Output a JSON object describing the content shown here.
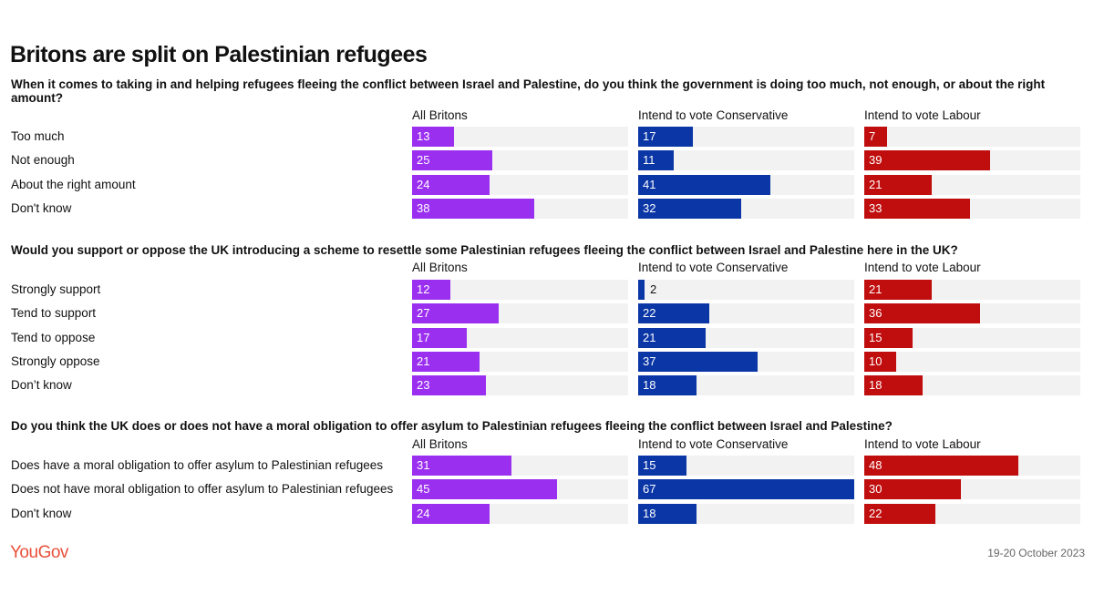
{
  "title": "Britons are split on Palestinian refugees",
  "logo": "YouGov",
  "date": "19-20 October 2023",
  "colors": {
    "All Britons": "#9b2ff0",
    "Intend to vote Conservative": "#0a36a6",
    "Intend to vote Labour": "#c00d0d"
  },
  "chart_data": [
    {
      "type": "bar",
      "title": "When it comes to taking in and helping refugees fleeing the conflict between Israel and Palestine, do you think the government is doing too much, not enough, or about the right amount?",
      "categories": [
        "Too much",
        "Not enough",
        "About the right amount",
        "Don't know"
      ],
      "series": [
        {
          "name": "All Britons",
          "values": [
            13,
            25,
            24,
            38
          ]
        },
        {
          "name": "Intend to vote Conservative",
          "values": [
            17,
            11,
            41,
            32
          ]
        },
        {
          "name": "Intend to vote Labour",
          "values": [
            7,
            39,
            21,
            33
          ]
        }
      ]
    },
    {
      "type": "bar",
      "title": "Would you support or oppose the UK introducing a scheme to resettle some Palestinian refugees fleeing the conflict between Israel and Palestine here in the UK?",
      "categories": [
        "Strongly support",
        "Tend to support",
        "Tend to oppose",
        "Strongly oppose",
        "Don’t know"
      ],
      "series": [
        {
          "name": "All Britons",
          "values": [
            12,
            27,
            17,
            21,
            23
          ]
        },
        {
          "name": "Intend to vote Conservative",
          "values": [
            2,
            22,
            21,
            37,
            18
          ]
        },
        {
          "name": "Intend to vote Labour",
          "values": [
            21,
            36,
            15,
            10,
            18
          ]
        }
      ]
    },
    {
      "type": "bar",
      "title": "Do you think the UK does or does not have a moral obligation to offer asylum to Palestinian refugees fleeing the conflict between Israel and Palestine?",
      "categories": [
        "Does have a moral obligation to offer asylum to Palestinian refugees",
        "Does not have moral obligation to offer asylum to Palestinian refugees",
        "Don't know"
      ],
      "series": [
        {
          "name": "All Britons",
          "values": [
            31,
            45,
            24
          ]
        },
        {
          "name": "Intend to vote Conservative",
          "values": [
            15,
            67,
            18
          ]
        },
        {
          "name": "Intend to vote Labour",
          "values": [
            48,
            30,
            22
          ]
        }
      ]
    }
  ]
}
